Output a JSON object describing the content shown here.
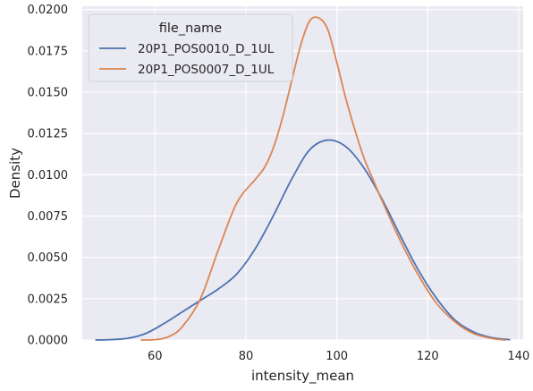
{
  "chart_data": {
    "type": "line",
    "subtype": "kde-density",
    "xlabel": "intensity_mean",
    "ylabel": "Density",
    "xlim": [
      44,
      141
    ],
    "ylim": [
      0,
      0.0202
    ],
    "xticks": [
      60,
      80,
      100,
      120,
      140
    ],
    "xtick_labels": [
      "60",
      "80",
      "100",
      "120",
      "140"
    ],
    "yticks": [
      0,
      0.0025,
      0.005,
      0.0075,
      0.01,
      0.0125,
      0.015,
      0.0175,
      0.02
    ],
    "ytick_labels": [
      "0.0000",
      "0.0025",
      "0.0050",
      "0.0075",
      "0.0100",
      "0.0125",
      "0.0150",
      "0.0175",
      "0.0200"
    ],
    "grid": true,
    "legend": {
      "title": "file_name",
      "placement": "top-left"
    },
    "series": [
      {
        "name": "20P1_POS0010_D_1UL",
        "color": "#4c72b0",
        "points": [
          [
            47,
            0
          ],
          [
            50,
            2e-05
          ],
          [
            54,
            0.0001
          ],
          [
            58,
            0.0004
          ],
          [
            62,
            0.001
          ],
          [
            66,
            0.0017
          ],
          [
            70,
            0.0024
          ],
          [
            74,
            0.0031
          ],
          [
            78,
            0.004
          ],
          [
            82,
            0.0055
          ],
          [
            86,
            0.0075
          ],
          [
            90,
            0.0097
          ],
          [
            94,
            0.0115
          ],
          [
            98,
            0.0121
          ],
          [
            102,
            0.0117
          ],
          [
            106,
            0.0104
          ],
          [
            110,
            0.0085
          ],
          [
            114,
            0.0063
          ],
          [
            118,
            0.0042
          ],
          [
            122,
            0.0025
          ],
          [
            126,
            0.0012
          ],
          [
            130,
            0.0005
          ],
          [
            134,
            0.00015
          ],
          [
            138,
            2e-05
          ]
        ]
      },
      {
        "name": "20P1_POS0007_D_1UL",
        "color": "#dd8452",
        "points": [
          [
            57,
            0
          ],
          [
            60,
            2e-05
          ],
          [
            63,
            0.0002
          ],
          [
            66,
            0.0008
          ],
          [
            70,
            0.0025
          ],
          [
            74,
            0.0055
          ],
          [
            78,
            0.0083
          ],
          [
            82,
            0.0097
          ],
          [
            84,
            0.0104
          ],
          [
            86,
            0.0116
          ],
          [
            88,
            0.0134
          ],
          [
            90,
            0.0156
          ],
          [
            92,
            0.0178
          ],
          [
            94,
            0.0193
          ],
          [
            96,
            0.0195
          ],
          [
            98,
            0.0188
          ],
          [
            100,
            0.0168
          ],
          [
            102,
            0.0146
          ],
          [
            104,
            0.0127
          ],
          [
            106,
            0.011
          ],
          [
            108,
            0.0097
          ],
          [
            110,
            0.0084
          ],
          [
            114,
            0.006
          ],
          [
            118,
            0.0039
          ],
          [
            122,
            0.0022
          ],
          [
            126,
            0.0011
          ],
          [
            130,
            0.0004
          ],
          [
            134,
            0.0001
          ],
          [
            137,
            0
          ]
        ]
      }
    ]
  }
}
